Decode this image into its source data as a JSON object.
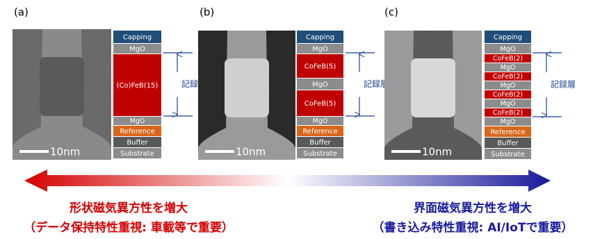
{
  "panels": [
    {
      "label": "(a)",
      "scale_bar": "10nm",
      "bracket": "記録層",
      "layers": [
        {
          "name": "Capping",
          "color": "#1f4e79"
        },
        {
          "name": "MgO",
          "color": "#8c8c8c"
        },
        {
          "name": "(Co)FeB(15)",
          "color": "#c00000"
        },
        {
          "name": "MgO",
          "color": "#8c8c8c"
        },
        {
          "name": "Reference",
          "color": "#d8661a"
        },
        {
          "name": "Buffer",
          "color": "#595959"
        },
        {
          "name": "Substrate",
          "color": "#8c8c8c"
        }
      ]
    },
    {
      "label": "(b)",
      "scale_bar": "10nm",
      "bracket": "記録層",
      "layers": [
        {
          "name": "Capping",
          "color": "#1f4e79"
        },
        {
          "name": "MgO",
          "color": "#8c8c8c"
        },
        {
          "name": "CoFeB(5)",
          "color": "#c00000"
        },
        {
          "name": "MgO",
          "color": "#8c8c8c"
        },
        {
          "name": "CoFeB(5)",
          "color": "#c00000"
        },
        {
          "name": "MgO",
          "color": "#8c8c8c"
        },
        {
          "name": "Reference",
          "color": "#d8661a"
        },
        {
          "name": "Buffer",
          "color": "#595959"
        },
        {
          "name": "Substrate",
          "color": "#8c8c8c"
        }
      ]
    },
    {
      "label": "(c)",
      "scale_bar": "10nm",
      "bracket": "記録層",
      "layers": [
        {
          "name": "Capping",
          "color": "#1f4e79"
        },
        {
          "name": "MgO",
          "color": "#8c8c8c"
        },
        {
          "name": "CoFeB(2)",
          "color": "#c00000"
        },
        {
          "name": "MgO",
          "color": "#8c8c8c"
        },
        {
          "name": "CoFeB(2)",
          "color": "#c00000"
        },
        {
          "name": "MgO",
          "color": "#8c8c8c"
        },
        {
          "name": "CoFeB(2)",
          "color": "#c00000"
        },
        {
          "name": "MgO",
          "color": "#8c8c8c"
        },
        {
          "name": "CoFeB(2)",
          "color": "#c00000"
        },
        {
          "name": "MgO",
          "color": "#8c8c8c"
        },
        {
          "name": "Reference",
          "color": "#d8661a"
        },
        {
          "name": "Buffer",
          "color": "#595959"
        },
        {
          "name": "Substrate",
          "color": "#8c8c8c"
        }
      ]
    }
  ],
  "left": {
    "title": "形状磁気異方性を増大",
    "subtitle": "（データ保持特性重視: 車載等で重要）"
  },
  "right": {
    "title": "界面磁気異方性を増大",
    "subtitle": "（書き込み特性重視: AI/IoTで重要）"
  }
}
